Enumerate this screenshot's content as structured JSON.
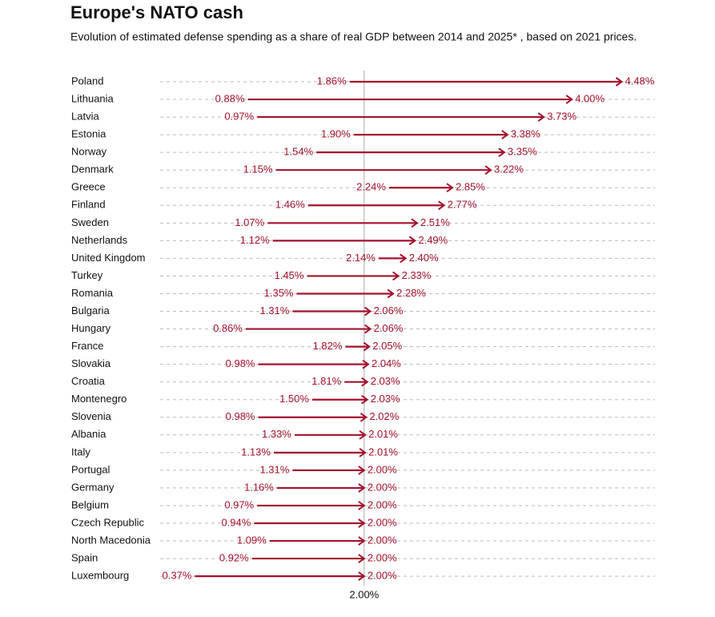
{
  "chart_data": {
    "type": "arrow",
    "title": "Europe's NATO cash",
    "subtitle": "Evolution of estimated defense spending as a share of real GDP between 2014 and 2025* , based on 2021 prices.",
    "categories": [
      "Poland",
      "Lithuania",
      "Latvia",
      "Estonia",
      "Norway",
      "Denmark",
      "Greece",
      "Finland",
      "Sweden",
      "Netherlands",
      "United Kingdom",
      "Turkey",
      "Romania",
      "Bulgaria",
      "Hungary",
      "France",
      "Slovakia",
      "Croatia",
      "Montenegro",
      "Slovenia",
      "Albania",
      "Italy",
      "Portugal",
      "Germany",
      "Belgium",
      "Czech Republic",
      "North Macedonia",
      "Spain",
      "Luxembourg"
    ],
    "series": [
      {
        "color": "#a3122e",
        "values": [
          1.86,
          0.88,
          0.97,
          1.9,
          1.54,
          1.15,
          2.24,
          1.46,
          1.07,
          1.12,
          2.14,
          1.45,
          1.35,
          1.31,
          0.86,
          1.82,
          0.98,
          1.81,
          1.5,
          0.98,
          1.33,
          1.13,
          1.31,
          1.16,
          0.97,
          0.94,
          1.09,
          0.92,
          0.37
        ],
        "value_labels": [
          "1.86%",
          "0.88%",
          "0.97%",
          "1.90%",
          "1.54%",
          "1.15%",
          "2.24%",
          "1.46%",
          "1.07%",
          "1.12%",
          "2.14%",
          "1.45%",
          "1.35%",
          "1.31%",
          "0.86%",
          "1.82%",
          "0.98%",
          "1.81%",
          "1.50%",
          "0.98%",
          "1.33%",
          "1.13%",
          "1.31%",
          "1.16%",
          "0.97%",
          "0.94%",
          "1.09%",
          "0.92%",
          "0.37%"
        ]
      },
      {
        "color": "#a3122e",
        "values": [
          4.48,
          4.0,
          3.73,
          3.38,
          3.35,
          3.22,
          2.85,
          2.77,
          2.51,
          2.49,
          2.4,
          2.33,
          2.28,
          2.06,
          2.06,
          2.05,
          2.04,
          2.03,
          2.03,
          2.02,
          2.01,
          2.01,
          2.0,
          2.0,
          2.0,
          2.0,
          2.0,
          2.0,
          2.0
        ],
        "value_labels": [
          "4.48%",
          "4.00%",
          "3.73%",
          "3.38%",
          "3.35%",
          "3.22%",
          "2.85%",
          "2.77%",
          "2.51%",
          "2.49%",
          "2.40%",
          "2.33%",
          "2.28%",
          "2.06%",
          "2.06%",
          "2.05%",
          "2.04%",
          "2.03%",
          "2.03%",
          "2.02%",
          "2.01%",
          "2.01%",
          "2.00%",
          "2.00%",
          "2.00%",
          "2.00%",
          "2.00%",
          "2.00%",
          "2.00%"
        ]
      }
    ],
    "xlim": [
      0,
      4.8
    ],
    "xticks": [
      {
        "value": 2,
        "label": "2.00%"
      }
    ]
  }
}
